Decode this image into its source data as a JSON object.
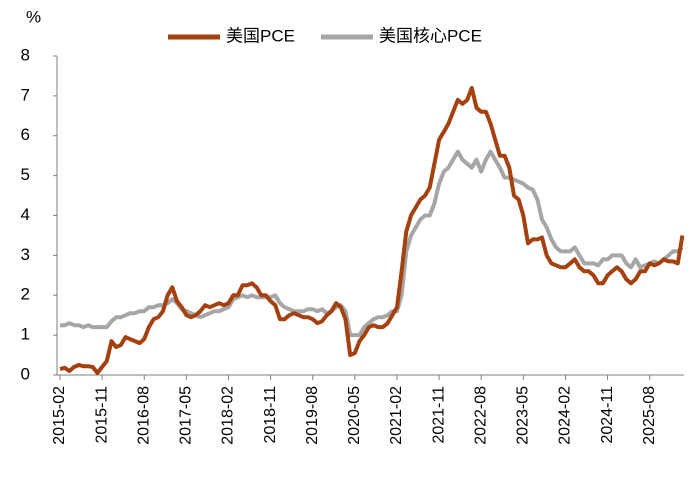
{
  "chart_data": {
    "type": "line",
    "ylabel": "%",
    "categories": [
      "2015-02",
      null,
      null,
      null,
      null,
      null,
      null,
      null,
      null,
      "2015-11",
      null,
      null,
      null,
      null,
      null,
      null,
      null,
      null,
      "2016-08",
      null,
      null,
      null,
      null,
      null,
      null,
      null,
      null,
      "2017-05",
      null,
      null,
      null,
      null,
      null,
      null,
      null,
      null,
      "2018-02",
      null,
      null,
      null,
      null,
      null,
      null,
      null,
      null,
      "2018-11",
      null,
      null,
      null,
      null,
      null,
      null,
      null,
      null,
      "2019-08",
      null,
      null,
      null,
      null,
      null,
      null,
      null,
      null,
      "2020-05",
      null,
      null,
      null,
      null,
      null,
      null,
      null,
      null,
      "2021-02",
      null,
      null,
      null,
      null,
      null,
      null,
      null,
      null,
      "2021-11",
      null,
      null,
      null,
      null,
      null,
      null,
      null,
      null,
      "2022-08",
      null,
      null,
      null,
      null,
      null,
      null,
      null,
      null,
      "2023-05",
      null,
      null,
      null,
      null,
      null,
      null,
      null,
      null,
      "2024-02",
      null,
      null,
      null,
      null,
      null,
      null,
      null,
      null,
      "2024-11",
      null,
      null,
      null,
      null,
      null,
      null,
      null,
      null,
      "2025-08",
      null,
      null,
      null,
      null,
      null,
      null,
      null
    ],
    "series": [
      {
        "name": "美国PCE",
        "color": "#a5400f",
        "values": [
          0.15,
          0.18,
          0.1,
          0.2,
          0.25,
          0.22,
          0.22,
          0.2,
          0.05,
          0.2,
          0.35,
          0.85,
          0.7,
          0.75,
          0.95,
          0.9,
          0.85,
          0.8,
          0.9,
          1.2,
          1.4,
          1.45,
          1.6,
          2.0,
          2.2,
          1.85,
          1.7,
          1.5,
          1.45,
          1.5,
          1.6,
          1.75,
          1.7,
          1.75,
          1.8,
          1.75,
          1.8,
          2.0,
          2.0,
          2.25,
          2.25,
          2.3,
          2.2,
          2.0,
          2.0,
          1.85,
          1.75,
          1.4,
          1.4,
          1.5,
          1.55,
          1.5,
          1.45,
          1.45,
          1.4,
          1.3,
          1.35,
          1.5,
          1.6,
          1.8,
          1.7,
          1.4,
          0.5,
          0.55,
          0.85,
          1.0,
          1.2,
          1.25,
          1.2,
          1.2,
          1.3,
          1.5,
          1.7,
          2.6,
          3.6,
          4.0,
          4.2,
          4.4,
          4.5,
          4.7,
          5.3,
          5.9,
          6.1,
          6.3,
          6.6,
          6.9,
          6.8,
          6.9,
          7.2,
          6.7,
          6.6,
          6.6,
          6.3,
          5.9,
          5.5,
          5.5,
          5.2,
          4.5,
          4.4,
          4.0,
          3.3,
          3.4,
          3.4,
          3.45,
          3.0,
          2.8,
          2.75,
          2.7,
          2.7,
          2.8,
          2.9,
          2.7,
          2.6,
          2.6,
          2.5,
          2.3,
          2.3,
          2.5,
          2.6,
          2.7,
          2.6,
          2.4,
          2.3,
          2.4,
          2.6,
          2.6,
          2.8,
          2.75,
          2.8,
          2.9,
          2.85,
          2.85,
          2.8,
          3.5
        ]
      },
      {
        "name": "美国核心PCE",
        "color": "#a6a6a6",
        "values": [
          1.25,
          1.25,
          1.3,
          1.25,
          1.25,
          1.2,
          1.25,
          1.2,
          1.2,
          1.2,
          1.2,
          1.35,
          1.45,
          1.45,
          1.5,
          1.55,
          1.55,
          1.6,
          1.6,
          1.7,
          1.7,
          1.75,
          1.75,
          1.8,
          1.9,
          1.8,
          1.65,
          1.6,
          1.55,
          1.5,
          1.45,
          1.5,
          1.55,
          1.6,
          1.6,
          1.65,
          1.7,
          1.9,
          1.95,
          2.0,
          1.95,
          2.0,
          1.95,
          1.95,
          1.95,
          1.95,
          2.0,
          1.8,
          1.7,
          1.65,
          1.6,
          1.6,
          1.6,
          1.65,
          1.65,
          1.6,
          1.65,
          1.55,
          1.6,
          1.7,
          1.75,
          1.6,
          1.0,
          1.0,
          1.0,
          1.2,
          1.3,
          1.4,
          1.45,
          1.45,
          1.5,
          1.6,
          1.6,
          2.0,
          3.1,
          3.5,
          3.7,
          3.9,
          4.0,
          4.0,
          4.3,
          4.8,
          5.1,
          5.2,
          5.4,
          5.6,
          5.4,
          5.3,
          5.2,
          5.4,
          5.1,
          5.4,
          5.6,
          5.4,
          5.2,
          4.95,
          4.95,
          4.9,
          4.85,
          4.8,
          4.7,
          4.65,
          4.4,
          3.9,
          3.7,
          3.4,
          3.2,
          3.1,
          3.1,
          3.1,
          3.2,
          3.0,
          2.8,
          2.8,
          2.8,
          2.75,
          2.9,
          2.9,
          3.0,
          3.0,
          3.0,
          2.8,
          2.7,
          2.9,
          2.7,
          2.75,
          2.8,
          2.85,
          2.8,
          2.9,
          3.0,
          3.1,
          3.1,
          3.2
        ]
      }
    ],
    "ylim": [
      0,
      8
    ],
    "yticks": [
      0,
      1,
      2,
      3,
      4,
      5,
      6,
      7,
      8
    ],
    "grid": false,
    "legend": "top"
  }
}
